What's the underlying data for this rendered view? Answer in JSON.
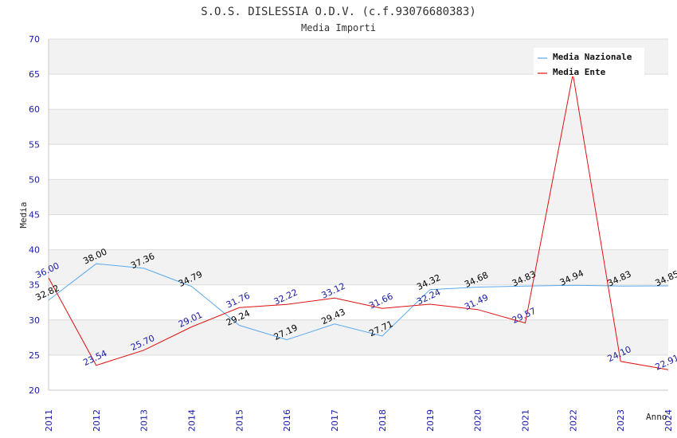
{
  "chart_data": {
    "type": "line",
    "title": "S.O.S. DISLESSIA O.D.V. (c.f.93076680383)",
    "subtitle": "Media Importi",
    "xlabel": "Anno",
    "ylabel": "Media",
    "ylim": [
      20,
      70
    ],
    "yticks": [
      20,
      25,
      30,
      35,
      40,
      45,
      50,
      55,
      60,
      65,
      70
    ],
    "categories": [
      "2011",
      "2012",
      "2013",
      "2014",
      "2015",
      "2016",
      "2017",
      "2018",
      "2019",
      "2020",
      "2021",
      "2022",
      "2023",
      "2024"
    ],
    "legend_position": "top-right",
    "series": [
      {
        "name": "Media Nazionale",
        "color": "#5aaaf0",
        "label_color": "#000000",
        "values": [
          32.82,
          38.0,
          37.36,
          34.79,
          29.24,
          27.19,
          29.43,
          27.71,
          34.32,
          34.68,
          34.83,
          34.94,
          34.83,
          34.85
        ],
        "labels": [
          "32.82",
          "38.00",
          "37.36",
          "34.79",
          "29.24",
          "27.19",
          "29.43",
          "27.71",
          "34.32",
          "34.68",
          "34.83",
          "34.94",
          "34.83",
          "34.85"
        ]
      },
      {
        "name": "Media Ente",
        "color": "#e01010",
        "label_color": "#1a1aa6",
        "values": [
          36.0,
          23.54,
          25.7,
          29.01,
          31.76,
          32.22,
          33.12,
          31.66,
          32.24,
          31.49,
          29.57,
          65.0,
          24.1,
          22.91
        ],
        "labels": [
          "36.00",
          "23.54",
          "25.70",
          "29.01",
          "31.76",
          "32.22",
          "33.12",
          "31.66",
          "32.24",
          "31.49",
          "29.57",
          "",
          "24.10",
          "22.91"
        ]
      }
    ]
  }
}
